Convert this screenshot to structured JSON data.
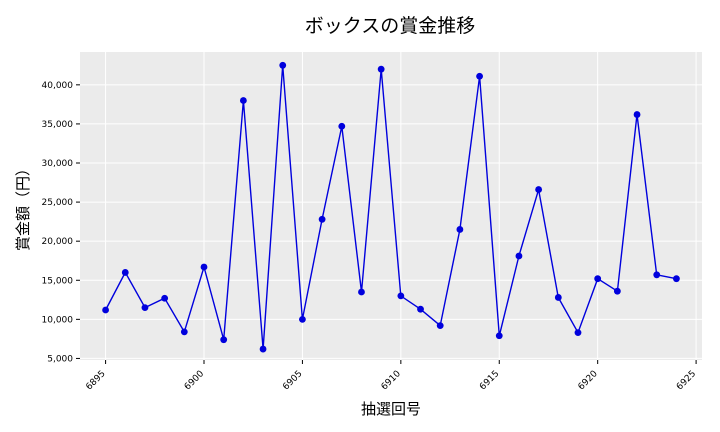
{
  "chart_data": {
    "type": "line",
    "title": "ボックスの賞金推移",
    "xlabel": "抽選回号",
    "ylabel": "賞金額（円）",
    "xlim": [
      6893.7,
      6925.3
    ],
    "ylim": [
      4800,
      44200
    ],
    "x_ticks": [
      6895,
      6900,
      6905,
      6910,
      6915,
      6920,
      6925
    ],
    "x_tick_labels": [
      "6895",
      "6900",
      "6905",
      "6910",
      "6915",
      "6920",
      "6925"
    ],
    "y_ticks": [
      5000,
      10000,
      15000,
      20000,
      25000,
      30000,
      35000,
      40000
    ],
    "y_tick_labels": [
      "5,000",
      "10,000",
      "15,000",
      "20,000",
      "25,000",
      "30,000",
      "35,000",
      "40,000"
    ],
    "grid": true,
    "series": [
      {
        "color": "#0000dd",
        "x": [
          6895,
          6896,
          6897,
          6898,
          6899,
          6900,
          6901,
          6902,
          6903,
          6904,
          6905,
          6906,
          6907,
          6908,
          6909,
          6910,
          6911,
          6912,
          6913,
          6914,
          6915,
          6916,
          6917,
          6918,
          6919,
          6920,
          6921,
          6922,
          6923,
          6924
        ],
        "values": [
          11200,
          16000,
          11500,
          12700,
          8400,
          16700,
          7400,
          38000,
          6200,
          42500,
          10000,
          22800,
          34700,
          13500,
          42000,
          13000,
          11300,
          9200,
          21500,
          41100,
          7900,
          18100,
          26600,
          12800,
          8300,
          15200,
          13600,
          36200,
          15700,
          15200
        ]
      }
    ]
  },
  "colors": {
    "plot_background": "#ebebeb",
    "grid": "#ffffff",
    "line": "#0000dd"
  }
}
